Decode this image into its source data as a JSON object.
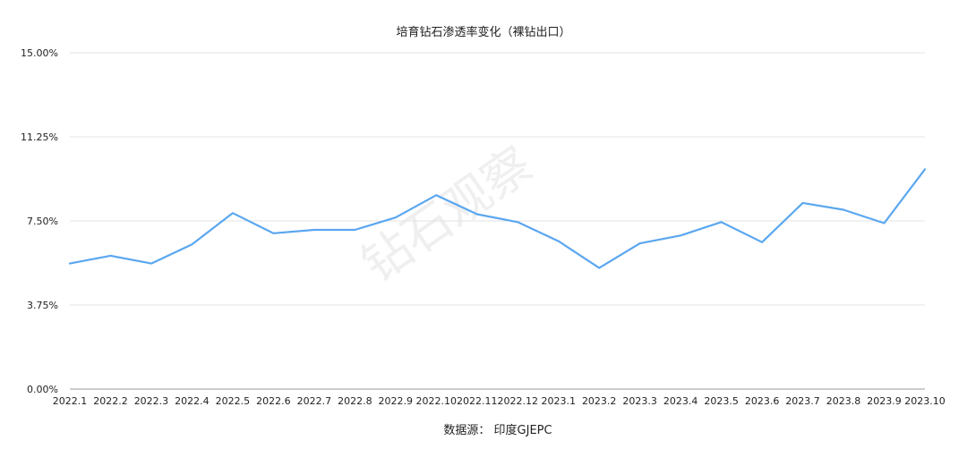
{
  "chart_data": {
    "type": "line",
    "title": "培育钻石渗透率变化（裸钻出口）",
    "source": "数据源：  印度GJEPC",
    "watermark": "钻石观察",
    "x": [
      "2022.1",
      "2022.2",
      "2022.3",
      "2022.4",
      "2022.5",
      "2022.6",
      "2022.7",
      "2022.8",
      "2022.9",
      "2022.10",
      "2022.11",
      "2022.12",
      "2023.1",
      "2023.2",
      "2023.3",
      "2023.4",
      "2023.5",
      "2023.6",
      "2023.7",
      "2023.8",
      "2023.9",
      "2023.10"
    ],
    "series": [
      {
        "name": "",
        "color": "#5aa7f0",
        "values": [
          5.6,
          5.95,
          5.6,
          6.45,
          7.85,
          6.95,
          7.1,
          7.1,
          7.65,
          8.65,
          7.8,
          7.45,
          6.6,
          5.4,
          6.5,
          6.85,
          7.45,
          6.55,
          8.3,
          8.0,
          7.4,
          9.8
        ]
      }
    ],
    "ylim": [
      0,
      15
    ],
    "yticks": [
      "0.00%",
      "3.75%",
      "7.50%",
      "11.25%",
      "15.00%"
    ],
    "ytick_values": [
      0,
      3.75,
      7.5,
      11.25,
      15
    ],
    "grid": true,
    "legend": "none",
    "xlabel": "",
    "ylabel": ""
  }
}
